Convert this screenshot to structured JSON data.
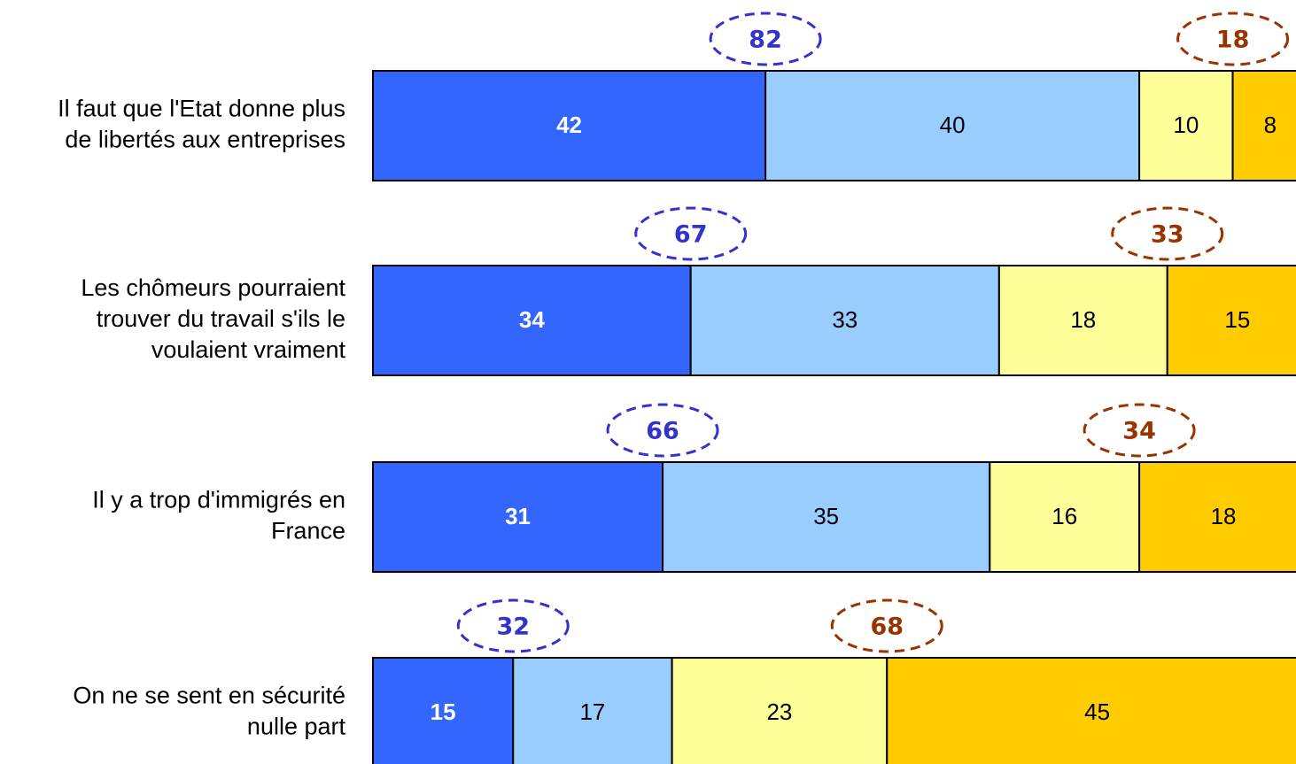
{
  "chart_data": {
    "type": "bar",
    "orientation": "horizontal",
    "stacked": true,
    "grid": false,
    "categories": [
      [
        "Il faut que l'Etat donne plus",
        "de libertés aux entreprises"
      ],
      [
        "Les chômeurs pourraient",
        "trouver du travail s'ils le",
        "voulaient vraiment"
      ],
      [
        "Il y a trop d'immigrés en",
        "France"
      ],
      [
        "On ne se sent en sécurité",
        "nulle part"
      ]
    ],
    "series": [
      {
        "values": [
          42,
          34,
          31,
          15
        ],
        "color": "#3366ff",
        "label_color": "#ffffff",
        "label_bold": true
      },
      {
        "values": [
          40,
          33,
          35,
          17
        ],
        "color": "#99ccff",
        "label_color": "#000000",
        "label_bold": false
      },
      {
        "values": [
          10,
          18,
          16,
          23
        ],
        "color": "#ffff99",
        "label_color": "#000000",
        "label_bold": false
      },
      {
        "values": [
          8,
          15,
          18,
          45
        ],
        "color": "#ffcc00",
        "label_color": "#000000",
        "label_bold": false
      }
    ],
    "totals": {
      "agree": {
        "values": [
          82,
          67,
          66,
          32
        ],
        "color": "#3333cc"
      },
      "disagree": {
        "values": [
          18,
          33,
          34,
          68
        ],
        "color": "#993300"
      }
    }
  }
}
